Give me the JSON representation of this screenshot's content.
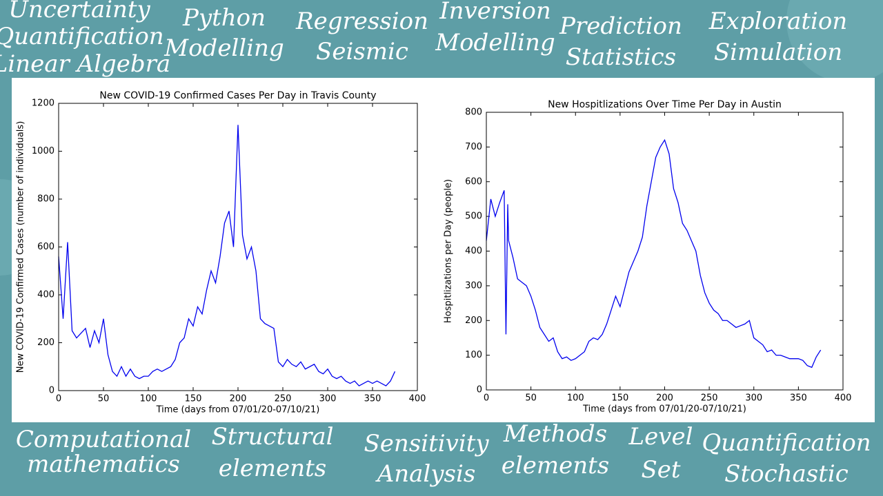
{
  "background_words": [
    "Uncertainty",
    "Quantification",
    "Linear Algebra",
    "Python",
    "Modelling",
    "Regression",
    "Seismic",
    "Inversion",
    "Modelling",
    "Prediction",
    "Statistics",
    "Exploration",
    "Simulation",
    "Computational",
    "mathematics",
    "Structural",
    "elements",
    "Sensitivity",
    "Analysis",
    "Methods",
    "elements",
    "Level",
    "Set",
    "Quantification",
    "Stochastic"
  ],
  "chart_data": [
    {
      "type": "line",
      "title": "New COVID-19 Confirmed Cases Per Day in Travis County",
      "x_label": "Time (days from 07/01/20-07/10/21)",
      "y_label": "New COVID-19 Confirmed Cases (number of individuals)",
      "x": [
        0,
        5,
        10,
        15,
        20,
        25,
        30,
        35,
        40,
        45,
        50,
        55,
        60,
        65,
        70,
        75,
        80,
        85,
        90,
        95,
        100,
        105,
        110,
        115,
        120,
        125,
        130,
        135,
        140,
        145,
        150,
        155,
        160,
        165,
        170,
        175,
        180,
        185,
        190,
        195,
        200,
        205,
        210,
        215,
        220,
        225,
        230,
        235,
        240,
        245,
        250,
        255,
        260,
        265,
        270,
        275,
        280,
        285,
        290,
        295,
        300,
        305,
        310,
        315,
        320,
        325,
        330,
        335,
        340,
        345,
        350,
        355,
        360,
        365,
        370,
        375
      ],
      "series": [
        {
          "name": "cases",
          "color": "#0000ee",
          "values": [
            560,
            300,
            620,
            250,
            220,
            240,
            260,
            180,
            250,
            200,
            300,
            150,
            80,
            60,
            100,
            60,
            90,
            60,
            50,
            60,
            60,
            80,
            90,
            80,
            90,
            100,
            130,
            200,
            220,
            300,
            270,
            350,
            320,
            420,
            500,
            450,
            560,
            700,
            750,
            600,
            1110,
            650,
            550,
            600,
            500,
            300,
            280,
            270,
            260,
            120,
            100,
            130,
            110,
            100,
            120,
            90,
            100,
            110,
            80,
            70,
            90,
            60,
            50,
            60,
            40,
            30,
            40,
            20,
            30,
            40,
            30,
            40,
            30,
            20,
            40,
            80
          ]
        }
      ],
      "xlim": [
        0,
        400
      ],
      "xticks": [
        0,
        50,
        100,
        150,
        200,
        250,
        300,
        350,
        400
      ],
      "ylim": [
        0,
        1200
      ],
      "yticks": [
        0,
        200,
        400,
        600,
        800,
        1000,
        1200
      ]
    },
    {
      "type": "line",
      "title": "New Hospitlizations Over Time Per Day in Austin",
      "x_label": "Time (days from 07/01/20-07/10/21)",
      "y_label": "Hospitlizations per Day (people)",
      "x": [
        0,
        5,
        10,
        15,
        20,
        22,
        24,
        25,
        30,
        35,
        40,
        45,
        50,
        55,
        60,
        65,
        70,
        75,
        80,
        85,
        90,
        95,
        100,
        105,
        110,
        115,
        120,
        125,
        130,
        135,
        140,
        145,
        150,
        155,
        160,
        165,
        170,
        175,
        180,
        185,
        190,
        195,
        200,
        205,
        210,
        215,
        220,
        225,
        230,
        235,
        240,
        245,
        250,
        255,
        260,
        265,
        270,
        275,
        280,
        285,
        290,
        295,
        300,
        305,
        310,
        315,
        320,
        325,
        330,
        335,
        340,
        345,
        350,
        355,
        360,
        365,
        370,
        375
      ],
      "series": [
        {
          "name": "hospitalizations",
          "color": "#0000ee",
          "values": [
            430,
            550,
            500,
            540,
            575,
            160,
            535,
            430,
            380,
            320,
            310,
            300,
            270,
            230,
            180,
            160,
            140,
            150,
            110,
            90,
            95,
            85,
            90,
            100,
            110,
            140,
            150,
            145,
            160,
            190,
            230,
            270,
            240,
            290,
            340,
            370,
            400,
            440,
            530,
            600,
            670,
            700,
            720,
            680,
            580,
            540,
            480,
            460,
            430,
            400,
            330,
            280,
            250,
            230,
            220,
            200,
            200,
            190,
            180,
            185,
            190,
            200,
            150,
            140,
            130,
            110,
            115,
            100,
            100,
            95,
            90,
            90,
            90,
            85,
            70,
            65,
            95,
            115
          ]
        }
      ],
      "xlim": [
        0,
        400
      ],
      "xticks": [
        0,
        50,
        100,
        150,
        200,
        250,
        300,
        350,
        400
      ],
      "ylim": [
        0,
        800
      ],
      "yticks": [
        0,
        100,
        200,
        300,
        400,
        500,
        600,
        700,
        800
      ]
    }
  ]
}
